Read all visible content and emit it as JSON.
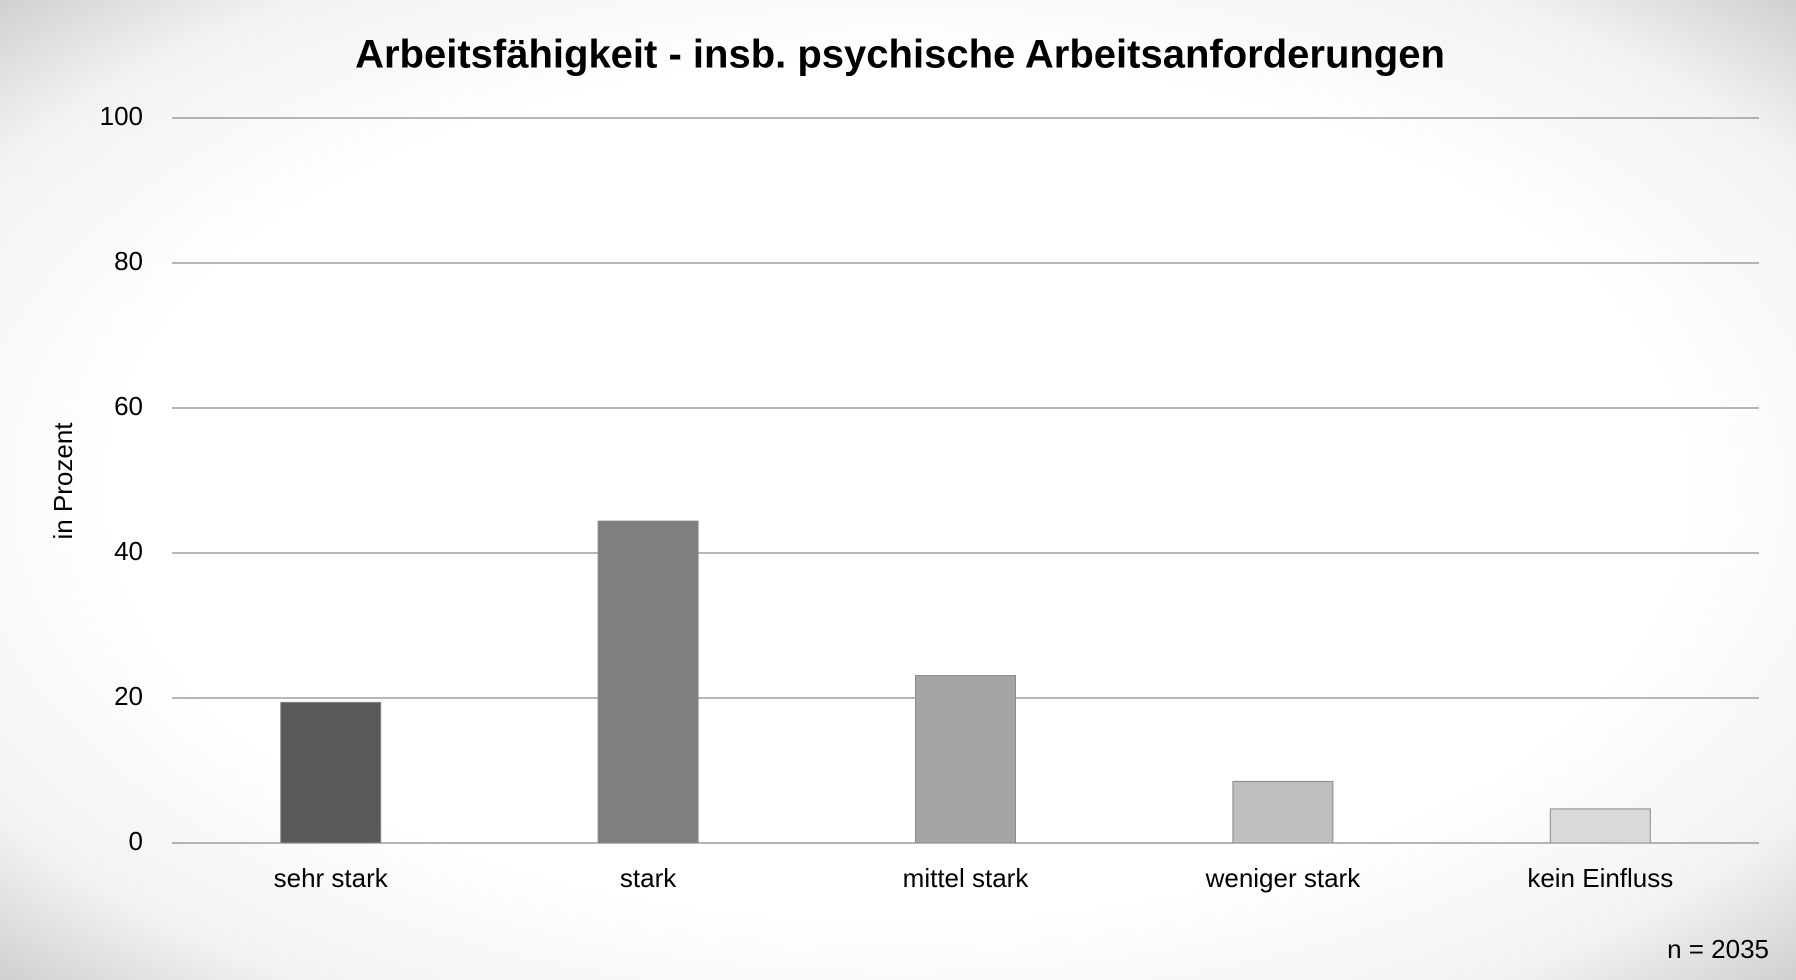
{
  "chart_data": {
    "type": "bar",
    "title": "Arbeitsfähigkeit - insb. psychische Arbeitsanforderungen",
    "y_label": "in Prozent",
    "categories": [
      "sehr stark",
      "stark",
      "mittel stark",
      "weniger stark",
      "kein Einfluss"
    ],
    "values": [
      19.4,
      44.4,
      23.1,
      8.5,
      4.7
    ],
    "colors": [
      "#595959",
      "#7f7f7f",
      "#a5a5a5",
      "#bfbfbf",
      "#d9d9d9"
    ],
    "ylim": [
      0,
      100
    ],
    "yticks": [
      0,
      20,
      40,
      60,
      80,
      100
    ],
    "grid": true,
    "annotation": "n = 2035"
  }
}
